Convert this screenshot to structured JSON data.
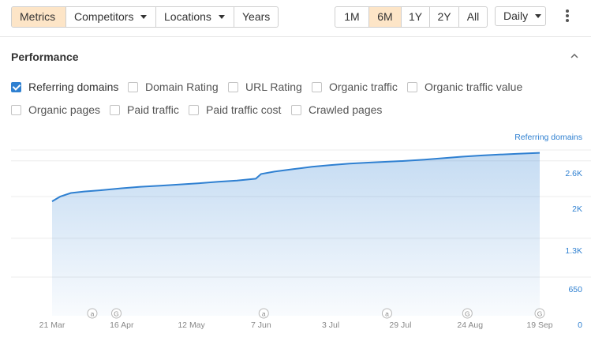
{
  "toolbar": {
    "view_tabs": [
      {
        "label": "Metrics",
        "active": true,
        "dropdown": false
      },
      {
        "label": "Competitors",
        "active": false,
        "dropdown": true
      },
      {
        "label": "Locations",
        "active": false,
        "dropdown": true
      },
      {
        "label": "Years",
        "active": false,
        "dropdown": false
      }
    ],
    "range_tabs": [
      {
        "label": "1M",
        "active": false
      },
      {
        "label": "6M",
        "active": true
      },
      {
        "label": "1Y",
        "active": false
      },
      {
        "label": "2Y",
        "active": false
      },
      {
        "label": "All",
        "active": false
      }
    ],
    "granularity": "Daily",
    "more_icon": "vertical-dots-icon"
  },
  "panel": {
    "title": "Performance",
    "collapse_icon": "chevron-up-icon"
  },
  "metrics": [
    {
      "label": "Referring domains",
      "checked": true
    },
    {
      "label": "Domain Rating",
      "checked": false
    },
    {
      "label": "URL Rating",
      "checked": false
    },
    {
      "label": "Organic traffic",
      "checked": false
    },
    {
      "label": "Organic traffic value",
      "checked": false
    },
    {
      "label": "Organic pages",
      "checked": false
    },
    {
      "label": "Paid traffic",
      "checked": false
    },
    {
      "label": "Paid traffic cost",
      "checked": false
    },
    {
      "label": "Crawled pages",
      "checked": false
    }
  ],
  "colors": {
    "accent": "#2f80d1",
    "active_tab": "#fde5c7",
    "axis_label": "#2f80d1"
  },
  "chart_data": {
    "type": "area",
    "series": [
      {
        "name": "Referring domains",
        "x": [
          "2023-03-21",
          "2023-03-24",
          "2023-03-28",
          "2023-04-02",
          "2023-04-09",
          "2023-04-16",
          "2023-04-23",
          "2023-05-01",
          "2023-05-08",
          "2023-05-15",
          "2023-05-22",
          "2023-05-29",
          "2023-06-05",
          "2023-06-07",
          "2023-06-12",
          "2023-06-19",
          "2023-06-26",
          "2023-07-03",
          "2023-07-10",
          "2023-07-17",
          "2023-07-24",
          "2023-07-31",
          "2023-08-07",
          "2023-08-14",
          "2023-08-21",
          "2023-08-28",
          "2023-09-04",
          "2023-09-11",
          "2023-09-19"
        ],
        "values": [
          1920,
          2000,
          2060,
          2085,
          2110,
          2140,
          2165,
          2185,
          2205,
          2225,
          2250,
          2270,
          2300,
          2380,
          2420,
          2460,
          2500,
          2530,
          2555,
          2570,
          2585,
          2600,
          2620,
          2645,
          2670,
          2690,
          2705,
          2720,
          2735
        ]
      }
    ],
    "ylim": [
      0,
      2650
    ],
    "yticks": [
      {
        "value": 650,
        "label": "650"
      },
      {
        "value": 1300,
        "label": "1.3K"
      },
      {
        "value": 2000,
        "label": "2K"
      },
      {
        "value": 2600,
        "label": "2.6K"
      },
      {
        "value": 0,
        "label": "0"
      }
    ],
    "xticks": [
      {
        "date": "2023-03-21",
        "label": "21 Mar"
      },
      {
        "date": "2023-04-16",
        "label": "16 Apr"
      },
      {
        "date": "2023-05-12",
        "label": "12 May"
      },
      {
        "date": "2023-06-07",
        "label": "7 Jun"
      },
      {
        "date": "2023-07-03",
        "label": "3 Jul"
      },
      {
        "date": "2023-07-29",
        "label": "29 Jul"
      },
      {
        "date": "2023-08-24",
        "label": "24 Aug"
      },
      {
        "date": "2023-09-19",
        "label": "19 Sep"
      }
    ],
    "annotations": [
      {
        "date": "2023-04-05",
        "symbol": "a"
      },
      {
        "date": "2023-04-14",
        "symbol": "G"
      },
      {
        "date": "2023-06-08",
        "symbol": "a"
      },
      {
        "date": "2023-07-24",
        "symbol": "a"
      },
      {
        "date": "2023-08-23",
        "symbol": "G"
      },
      {
        "date": "2023-09-19",
        "symbol": "G"
      }
    ],
    "legend": "Referring domains",
    "legend_position": "top-right",
    "grid": true
  }
}
